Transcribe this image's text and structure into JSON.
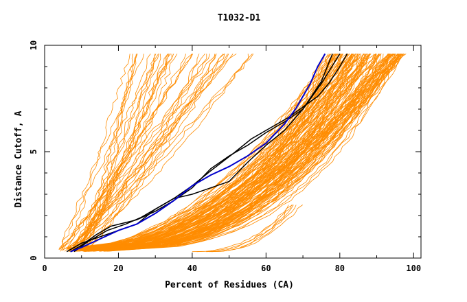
{
  "chart_data": {
    "type": "line",
    "title": "T1032-D1",
    "xlabel": "Percent of Residues (CA)",
    "ylabel": "Distance Cutoff, A",
    "xlim": [
      0,
      102
    ],
    "ylim": [
      0,
      10
    ],
    "xticks": [
      0,
      20,
      40,
      60,
      80,
      100
    ],
    "yticks": [
      0,
      5,
      10
    ],
    "grid": false,
    "colors": {
      "background_models": "#ff8c00",
      "highlight": "#0000cc",
      "reference": "#000000"
    },
    "series": [
      {
        "role": "highlight",
        "color": "#0000cc",
        "x": [
          7,
          10,
          15,
          20,
          25,
          30,
          35,
          40,
          45,
          50,
          55,
          60,
          65,
          68,
          70,
          72,
          74,
          76
        ],
        "y": [
          0.3,
          0.5,
          0.9,
          1.3,
          1.6,
          2.1,
          2.7,
          3.4,
          3.9,
          4.3,
          4.8,
          5.4,
          6.3,
          7.0,
          7.6,
          8.2,
          9.0,
          9.6
        ]
      },
      {
        "role": "reference",
        "color": "#000000",
        "x": [
          7,
          10,
          14,
          18,
          25,
          30,
          35,
          40,
          45,
          50,
          55,
          60,
          65,
          70,
          75,
          80
        ],
        "y": [
          0.3,
          0.6,
          1.1,
          1.5,
          1.8,
          2.2,
          2.7,
          3.3,
          4.2,
          4.8,
          5.3,
          5.9,
          6.4,
          7.0,
          8.2,
          9.6
        ]
      },
      {
        "role": "reference",
        "color": "#000000",
        "x": [
          6,
          10,
          15,
          20,
          25,
          30,
          35,
          40,
          45,
          50,
          55,
          60,
          65,
          70,
          75,
          78
        ],
        "y": [
          0.3,
          0.7,
          1.0,
          1.3,
          1.6,
          2.3,
          2.8,
          3.0,
          3.3,
          3.6,
          4.5,
          5.3,
          6.0,
          7.0,
          8.3,
          9.6
        ]
      },
      {
        "role": "reference",
        "color": "#000000",
        "x": [
          8,
          12,
          17,
          22,
          26,
          30,
          35,
          40,
          45,
          51,
          56,
          61,
          66,
          70,
          74,
          77,
          80,
          82
        ],
        "y": [
          0.3,
          0.8,
          1.3,
          1.6,
          1.9,
          2.3,
          2.8,
          3.4,
          4.1,
          4.9,
          5.6,
          6.1,
          6.6,
          7.1,
          7.6,
          8.2,
          9.0,
          9.6
        ]
      }
    ]
  }
}
